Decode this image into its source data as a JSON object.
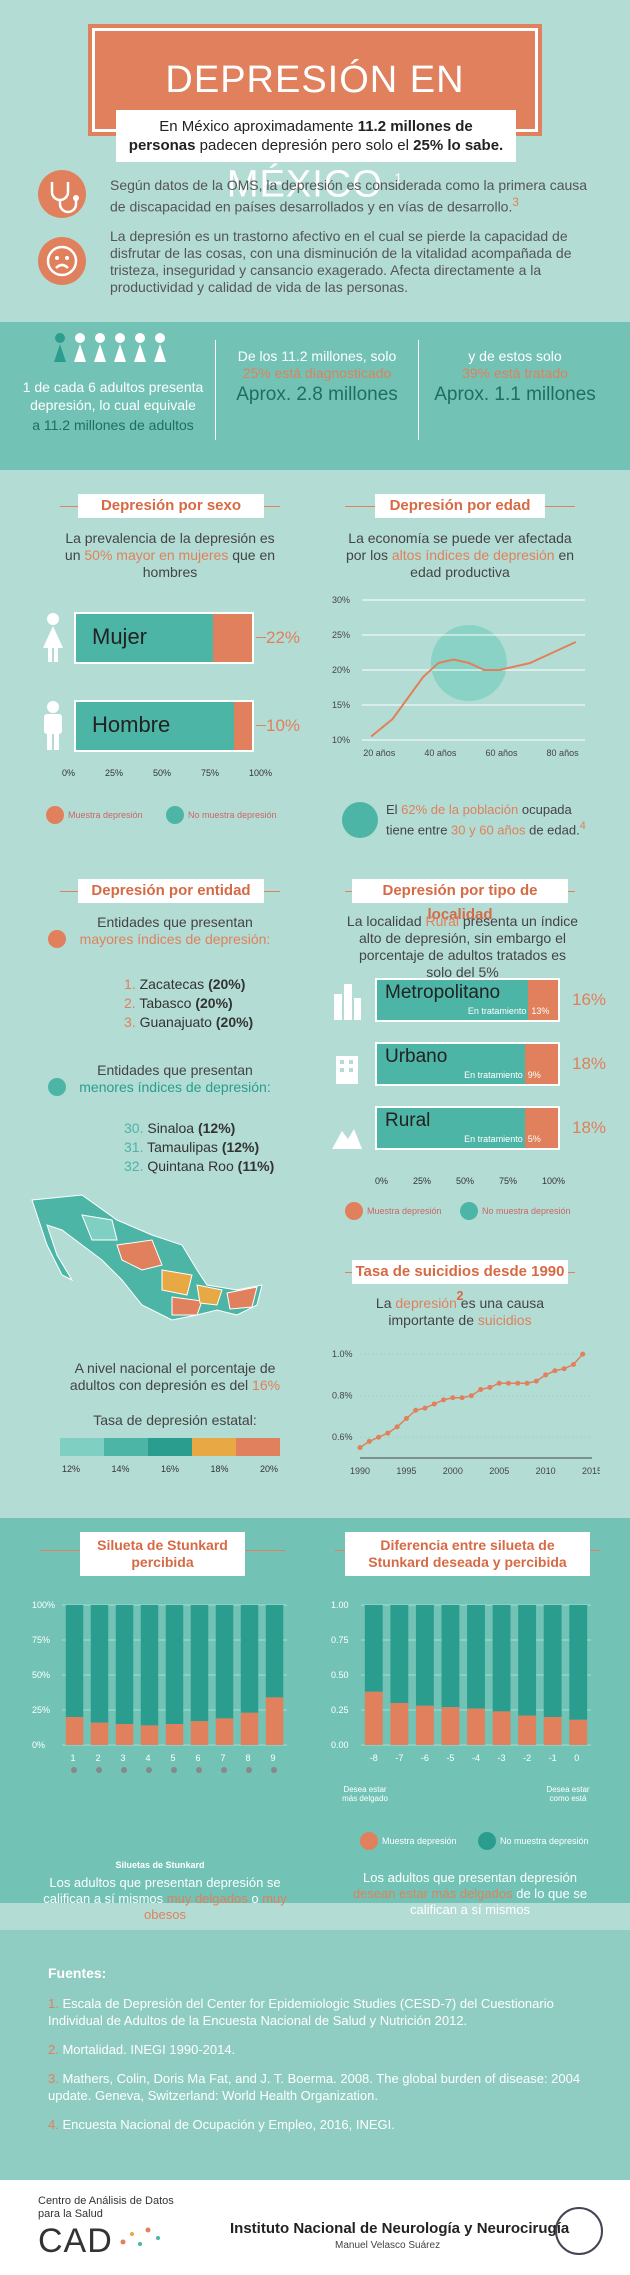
{
  "header": {
    "title": "DEPRESIÓN EN MÉXICO",
    "title_sup": "1"
  },
  "intro": {
    "line1": "En México aproximadamente ",
    "bold1": "11.2 millones de personas",
    "line1b": " padecen depresión pero solo el ",
    "bold2": "25% lo sabe."
  },
  "oms_text": "Según datos de la OMS, la depresión es considerada como la primera causa de discapacidad en países desarrollados y en vías de desarrollo.",
  "oms_sup": "3",
  "trastorno_text": "La depresión es un trastorno afectivo en el cual se pierde la capacidad de disfrutar de las cosas, con una disminución de la vitalidad acompañada de tristeza, inseguridad y cansancio exagerado. Afecta directamente a la productividad y calidad de vida de las personas.",
  "stats": {
    "s1_a": "1 de cada 6 adultos presenta depresión, lo cual equivale",
    "s1_b": "a  11.2 millones de adultos",
    "s2_a": "De los 11.2 millones, solo",
    "s2_b": "25% está diagnosticado",
    "s2_c": "Aprox. 2.8 millones",
    "s3_a": "y de estos solo",
    "s3_b": "39% está tratado",
    "s3_c": "Aprox. 1.1 millones"
  },
  "sexo": {
    "header": "Depresión por sexo",
    "desc_a": "La prevalencia de la depresión es un ",
    "desc_b": "50% mayor en mujeres",
    "desc_c": " que en hombres",
    "rows": [
      {
        "label": "Mujer",
        "pct": "22%",
        "value": 22
      },
      {
        "label": "Hombre",
        "pct": "10%",
        "value": 10
      }
    ],
    "ticks": [
      "0%",
      "25%",
      "50%",
      "75%",
      "100%"
    ],
    "legend_a": "Muestra depresión",
    "legend_b": "No muestra depresión"
  },
  "edad": {
    "header": "Depresión por edad",
    "desc_a": "La economía se puede ver afectada por los ",
    "desc_b": "altos índices de depresión",
    "desc_c": " en edad productiva",
    "yticks": [
      "30%",
      "25%",
      "20%",
      "15%",
      "10%"
    ],
    "xticks": [
      "20 años",
      "40 años",
      "60 años",
      "80 años"
    ],
    "note_a": "El ",
    "note_b": "62% de la población",
    "note_c": " ocupada tiene entre ",
    "note_d": "30 y 60 años",
    "note_e": " de edad.",
    "note_sup": "4"
  },
  "entidad": {
    "header": "Depresión por entidad",
    "mayores_a": "Entidades que presentan",
    "mayores_b": "mayores índices de depresión:",
    "mayores": [
      {
        "n": "1.",
        "name": "Zacatecas ",
        "v": "(20%)"
      },
      {
        "n": "2.",
        "name": "Tabasco ",
        "v": "(20%)"
      },
      {
        "n": "3.",
        "name": "Guanajuato ",
        "v": "(20%)"
      }
    ],
    "menores_a": "Entidades que presentan",
    "menores_b": "menores índices de depresión:",
    "menores": [
      {
        "n": "30.",
        "name": "Sinaloa ",
        "v": "(12%)"
      },
      {
        "n": "31.",
        "name": "Tamaulipas ",
        "v": "(12%)"
      },
      {
        "n": "32.",
        "name": "Quintana Roo ",
        "v": "(11%)"
      }
    ],
    "nacional_a": "A nivel nacional el porcentaje de adultos con depresión es del ",
    "nacional_b": "16%",
    "tasa_label": "Tasa de depresión estatal:",
    "scale": [
      "12%",
      "14%",
      "16%",
      "18%",
      "20%"
    ]
  },
  "localidad": {
    "header": "Depresión por tipo de localidad",
    "desc_a": "La localidad ",
    "desc_b": "Rural",
    "desc_c": " presenta un índice alto de depresión, sin embargo el porcentaje de adultos tratados es solo del 5%",
    "rows": [
      {
        "label": "Metropolitano",
        "sub": "En tratamiento",
        "treat": "13%",
        "pct": "16%",
        "value": 16
      },
      {
        "label": "Urbano",
        "sub": "En tratamiento",
        "treat": "9%",
        "pct": "18%",
        "value": 18
      },
      {
        "label": "Rural",
        "sub": "En tratamiento",
        "treat": "5%",
        "pct": "18%",
        "value": 18
      }
    ],
    "ticks": [
      "0%",
      "25%",
      "50%",
      "75%",
      "100%"
    ],
    "legend_a": "Muestra depresión",
    "legend_b": "No muestra depresión"
  },
  "suicidios": {
    "header": "Tasa de suicidios desde 1990",
    "header_sup": "2",
    "desc_a": "La ",
    "desc_b": "depresión",
    "desc_c": " es una causa importante de ",
    "desc_d": "suicidios",
    "yticks": [
      "1.0%",
      "0.8%",
      "0.6%"
    ],
    "xticks": [
      "1990",
      "1995",
      "2000",
      "2005",
      "2010",
      "2015"
    ]
  },
  "stunkard": {
    "header_a": "Silueta de Stunkard",
    "header_b": "percibida",
    "yticks": [
      "100%",
      "75%",
      "50%",
      "25%",
      "0%"
    ],
    "xticks": [
      "1",
      "2",
      "3",
      "4",
      "5",
      "6",
      "7",
      "8",
      "9"
    ],
    "siluetas_label": "Siluetas de Stunkard",
    "caption_a": "Los adultos que presentan depresión se califican a sí mismos ",
    "caption_b": "muy delgados",
    "caption_c": " o ",
    "caption_d": "muy obesos"
  },
  "diferencia": {
    "header_a": "Diferencia entre silueta de",
    "header_b": "Stunkard deseada y percibida",
    "yticks": [
      "1.00",
      "0.75",
      "0.50",
      "0.25",
      "0.00"
    ],
    "xticks": [
      "-8",
      "-7",
      "-6",
      "-5",
      "-4",
      "-3",
      "-2",
      "-1",
      "0"
    ],
    "left_label": "Desea estar más delgado",
    "right_label": "Desea estar como está",
    "legend_a": "Muestra depresión",
    "legend_b": "No muestra depresión",
    "caption_a": "Los adultos que presentan depresión ",
    "caption_b": "desean estar más delgados",
    "caption_c": " de lo que se califican a sí mismos"
  },
  "fuentes": {
    "title": "Fuentes:",
    "items": [
      {
        "n": "1.",
        "t": " Escala de Depresión del Center for Epidemiologic Studies (CESD-7) del Cuestionario Individual de Adultos de la Encuesta Nacional de Salud y Nutrición 2012."
      },
      {
        "n": "2.",
        "t": " Mortalidad. INEGI 1990-2014."
      },
      {
        "n": "3.",
        "t": " Mathers, Colin, Doris Ma Fat, and J. T. Boerma. 2008. The global burden of disease: 2004 update. Geneva, Switzerland: World Health Organization."
      },
      {
        "n": "4.",
        "t": " Encuesta Nacional de Ocupación y Empleo, 2016, INEGI."
      }
    ]
  },
  "footer": {
    "cad_a": "Centro de Análisis de Datos",
    "cad_b": "para la Salud",
    "cad_logo": "CAD",
    "inst": "Instituto Nacional de Neurología y Neurocirugía",
    "inst_sub": "Manuel Velasco Suárez"
  },
  "colors": {
    "orange": "#e0805c",
    "teal": "#4cb5a5",
    "bg": "#b3dcd4",
    "band": "#72c3b5"
  },
  "chart_data": [
    {
      "type": "bar",
      "title": "Depresión por sexo",
      "categories": [
        "Mujer",
        "Hombre"
      ],
      "values": [
        22,
        10
      ],
      "ylim": [
        0,
        100
      ]
    },
    {
      "type": "line",
      "title": "Depresión por edad",
      "x": [
        18,
        25,
        30,
        35,
        40,
        45,
        50,
        55,
        60,
        65,
        70,
        75,
        80,
        85
      ],
      "values": [
        10.5,
        13,
        16,
        19,
        21,
        21.5,
        21,
        20,
        20,
        20.5,
        21,
        22,
        23,
        24
      ],
      "ylim": [
        10,
        30
      ]
    },
    {
      "type": "bar",
      "title": "Depresión por tipo de localidad",
      "categories": [
        "Metropolitano",
        "Urbano",
        "Rural"
      ],
      "values": [
        16,
        18,
        18
      ],
      "treated": [
        13,
        9,
        5
      ]
    },
    {
      "type": "line",
      "title": "Tasa de suicidios desde 1990",
      "x": [
        1990,
        1991,
        1992,
        1993,
        1994,
        1995,
        1996,
        1997,
        1998,
        1999,
        2000,
        2001,
        2002,
        2003,
        2004,
        2005,
        2006,
        2007,
        2008,
        2009,
        2010,
        2011,
        2012,
        2013,
        2014
      ],
      "values": [
        0.55,
        0.58,
        0.6,
        0.62,
        0.65,
        0.69,
        0.73,
        0.74,
        0.76,
        0.78,
        0.79,
        0.79,
        0.8,
        0.83,
        0.84,
        0.86,
        0.86,
        0.86,
        0.86,
        0.87,
        0.9,
        0.92,
        0.93,
        0.95,
        1.0
      ],
      "ylim": [
        0.5,
        1.0
      ]
    },
    {
      "type": "bar",
      "title": "Silueta de Stunkard percibida",
      "categories": [
        "1",
        "2",
        "3",
        "4",
        "5",
        "6",
        "7",
        "8",
        "9"
      ],
      "series": [
        {
          "name": "Muestra depresión",
          "values": [
            20,
            16,
            15,
            14,
            15,
            17,
            19,
            23,
            34
          ]
        }
      ]
    },
    {
      "type": "bar",
      "title": "Diferencia entre silueta de Stunkard deseada y percibida",
      "categories": [
        "-8",
        "-7",
        "-6",
        "-5",
        "-4",
        "-3",
        "-2",
        "-1",
        "0"
      ],
      "series": [
        {
          "name": "Muestra depresión",
          "values": [
            0.38,
            0.3,
            0.28,
            0.27,
            0.26,
            0.24,
            0.21,
            0.2,
            0.18
          ]
        }
      ]
    }
  ]
}
